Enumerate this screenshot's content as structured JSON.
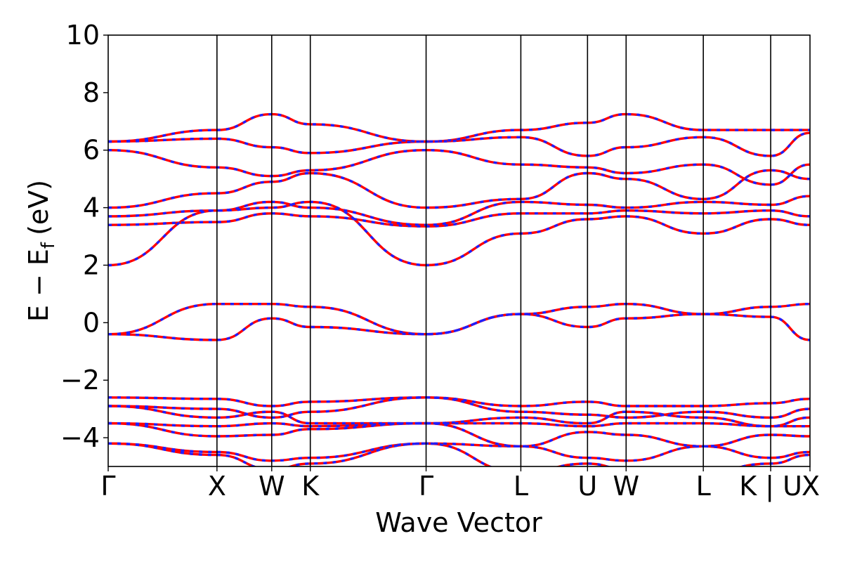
{
  "chart_data": {
    "type": "line",
    "xlabel": "Wave Vector",
    "ylabel": {
      "main": "E − E",
      "sub": "f",
      "unit": "(eV)"
    },
    "ylim": [
      -5,
      10
    ],
    "yticks": [
      -4,
      -2,
      0,
      2,
      4,
      6,
      8,
      10
    ],
    "ytick_labels": [
      "−4",
      "−2",
      "0",
      "2",
      "4",
      "6",
      "8",
      "10"
    ],
    "grid": false,
    "kpath": [
      {
        "label": "Γ",
        "k": 0.0
      },
      {
        "label": "X",
        "k": 0.155
      },
      {
        "label": "W",
        "k": 0.233
      },
      {
        "label": "K",
        "k": 0.288
      },
      {
        "label": "Γ",
        "k": 0.453
      },
      {
        "label": "L",
        "k": 0.588
      },
      {
        "label": "U",
        "k": 0.683
      },
      {
        "label": "W",
        "k": 0.738
      },
      {
        "label": "L",
        "k": 0.848
      },
      {
        "label": "K | U",
        "k": 0.944
      },
      {
        "label": "X",
        "k": 1.0
      }
    ],
    "series_styles": [
      {
        "style": "solid",
        "color": "#ff0000"
      },
      {
        "style": "dashed",
        "color": "#1f1fff"
      }
    ],
    "bands": [
      [
        [
          0.0,
          2.0
        ],
        [
          0.155,
          3.9
        ],
        [
          0.233,
          4.0
        ],
        [
          0.288,
          4.2
        ],
        [
          0.453,
          2.0
        ],
        [
          0.588,
          3.1
        ],
        [
          0.683,
          3.6
        ],
        [
          0.738,
          3.7
        ],
        [
          0.848,
          3.1
        ],
        [
          0.944,
          3.6
        ],
        [
          1.0,
          3.4
        ]
      ],
      [
        [
          0.0,
          3.4
        ],
        [
          0.155,
          3.5
        ],
        [
          0.233,
          3.8
        ],
        [
          0.288,
          3.7
        ],
        [
          0.453,
          3.35
        ],
        [
          0.588,
          3.8
        ],
        [
          0.683,
          3.8
        ],
        [
          0.738,
          3.9
        ],
        [
          0.848,
          3.8
        ],
        [
          0.944,
          3.9
        ],
        [
          1.0,
          3.7
        ]
      ],
      [
        [
          0.0,
          3.7
        ],
        [
          0.155,
          3.9
        ],
        [
          0.233,
          4.2
        ],
        [
          0.288,
          4.0
        ],
        [
          0.453,
          3.4
        ],
        [
          0.588,
          4.2
        ],
        [
          0.683,
          4.1
        ],
        [
          0.738,
          4.0
        ],
        [
          0.848,
          4.2
        ],
        [
          0.944,
          4.1
        ],
        [
          1.0,
          4.4
        ]
      ],
      [
        [
          0.0,
          4.0
        ],
        [
          0.155,
          4.5
        ],
        [
          0.233,
          4.9
        ],
        [
          0.288,
          5.2
        ],
        [
          0.453,
          4.0
        ],
        [
          0.588,
          4.3
        ],
        [
          0.683,
          5.2
        ],
        [
          0.738,
          5.0
        ],
        [
          0.848,
          4.3
        ],
        [
          0.944,
          5.3
        ],
        [
          1.0,
          5.0
        ]
      ],
      [
        [
          0.0,
          6.0
        ],
        [
          0.155,
          5.4
        ],
        [
          0.233,
          5.1
        ],
        [
          0.288,
          5.3
        ],
        [
          0.453,
          6.0
        ],
        [
          0.588,
          5.5
        ],
        [
          0.683,
          5.4
        ],
        [
          0.738,
          5.2
        ],
        [
          0.848,
          5.5
        ],
        [
          0.944,
          4.8
        ],
        [
          1.0,
          5.5
        ]
      ],
      [
        [
          0.0,
          6.3
        ],
        [
          0.155,
          6.4
        ],
        [
          0.233,
          6.1
        ],
        [
          0.288,
          5.9
        ],
        [
          0.453,
          6.3
        ],
        [
          0.588,
          6.45
        ],
        [
          0.683,
          5.8
        ],
        [
          0.738,
          6.1
        ],
        [
          0.848,
          6.45
        ],
        [
          0.944,
          5.8
        ],
        [
          1.0,
          6.6
        ]
      ],
      [
        [
          0.0,
          6.3
        ],
        [
          0.155,
          6.7
        ],
        [
          0.233,
          7.25
        ],
        [
          0.288,
          6.9
        ],
        [
          0.453,
          6.3
        ],
        [
          0.588,
          6.7
        ],
        [
          0.683,
          6.95
        ],
        [
          0.738,
          7.25
        ],
        [
          0.848,
          6.7
        ],
        [
          0.944,
          6.7
        ],
        [
          1.0,
          6.7
        ]
      ],
      [
        [
          0.0,
          -0.4
        ],
        [
          0.155,
          0.65
        ],
        [
          0.233,
          0.65
        ],
        [
          0.288,
          0.55
        ],
        [
          0.453,
          -0.4
        ],
        [
          0.588,
          0.3
        ],
        [
          0.683,
          0.55
        ],
        [
          0.738,
          0.65
        ],
        [
          0.848,
          0.3
        ],
        [
          0.944,
          0.55
        ],
        [
          1.0,
          0.65
        ]
      ],
      [
        [
          0.0,
          -0.4
        ],
        [
          0.155,
          -0.6
        ],
        [
          0.233,
          0.15
        ],
        [
          0.288,
          -0.15
        ],
        [
          0.453,
          -0.4
        ],
        [
          0.588,
          0.3
        ],
        [
          0.683,
          -0.15
        ],
        [
          0.738,
          0.15
        ],
        [
          0.848,
          0.3
        ],
        [
          0.944,
          0.2
        ],
        [
          1.0,
          -0.6
        ]
      ],
      [
        [
          0.0,
          -2.6
        ],
        [
          0.155,
          -2.65
        ],
        [
          0.233,
          -2.9
        ],
        [
          0.288,
          -2.75
        ],
        [
          0.453,
          -2.6
        ],
        [
          0.588,
          -2.9
        ],
        [
          0.683,
          -2.75
        ],
        [
          0.738,
          -2.9
        ],
        [
          0.848,
          -2.9
        ],
        [
          0.944,
          -2.8
        ],
        [
          1.0,
          -2.65
        ]
      ],
      [
        [
          0.0,
          -2.9
        ],
        [
          0.155,
          -3.0
        ],
        [
          0.233,
          -3.3
        ],
        [
          0.288,
          -3.1
        ],
        [
          0.453,
          -2.6
        ],
        [
          0.588,
          -3.1
        ],
        [
          0.683,
          -3.2
        ],
        [
          0.738,
          -3.3
        ],
        [
          0.848,
          -3.1
        ],
        [
          0.944,
          -3.3
        ],
        [
          1.0,
          -3.0
        ]
      ],
      [
        [
          0.0,
          -2.9
        ],
        [
          0.155,
          -3.3
        ],
        [
          0.233,
          -3.1
        ],
        [
          0.288,
          -3.5
        ],
        [
          0.453,
          -3.5
        ],
        [
          0.588,
          -3.3
        ],
        [
          0.683,
          -3.5
        ],
        [
          0.738,
          -3.1
        ],
        [
          0.848,
          -3.3
        ],
        [
          0.944,
          -3.6
        ],
        [
          1.0,
          -3.3
        ]
      ],
      [
        [
          0.0,
          -3.5
        ],
        [
          0.155,
          -3.6
        ],
        [
          0.233,
          -3.5
        ],
        [
          0.288,
          -3.6
        ],
        [
          0.453,
          -3.5
        ],
        [
          0.588,
          -3.5
        ],
        [
          0.683,
          -3.6
        ],
        [
          0.738,
          -3.5
        ],
        [
          0.848,
          -3.5
        ],
        [
          0.944,
          -3.6
        ],
        [
          1.0,
          -3.6
        ]
      ],
      [
        [
          0.0,
          -3.5
        ],
        [
          0.155,
          -3.95
        ],
        [
          0.233,
          -3.9
        ],
        [
          0.288,
          -3.7
        ],
        [
          0.453,
          -3.5
        ],
        [
          0.588,
          -4.3
        ],
        [
          0.683,
          -3.8
        ],
        [
          0.738,
          -3.9
        ],
        [
          0.848,
          -4.3
        ],
        [
          0.944,
          -3.9
        ],
        [
          1.0,
          -3.95
        ]
      ],
      [
        [
          0.0,
          -4.2
        ],
        [
          0.155,
          -4.5
        ],
        [
          0.233,
          -4.8
        ],
        [
          0.288,
          -4.7
        ],
        [
          0.453,
          -4.2
        ],
        [
          0.588,
          -4.3
        ],
        [
          0.683,
          -4.7
        ],
        [
          0.738,
          -4.8
        ],
        [
          0.848,
          -4.3
        ],
        [
          0.944,
          -4.7
        ],
        [
          1.0,
          -4.5
        ]
      ],
      [
        [
          0.0,
          -4.2
        ],
        [
          0.155,
          -4.6
        ],
        [
          0.233,
          -5.1
        ],
        [
          0.288,
          -4.9
        ],
        [
          0.453,
          -4.2
        ],
        [
          0.588,
          -5.2
        ],
        [
          0.683,
          -4.9
        ],
        [
          0.738,
          -5.1
        ],
        [
          0.848,
          -5.2
        ],
        [
          0.944,
          -4.9
        ],
        [
          1.0,
          -4.6
        ]
      ]
    ]
  }
}
